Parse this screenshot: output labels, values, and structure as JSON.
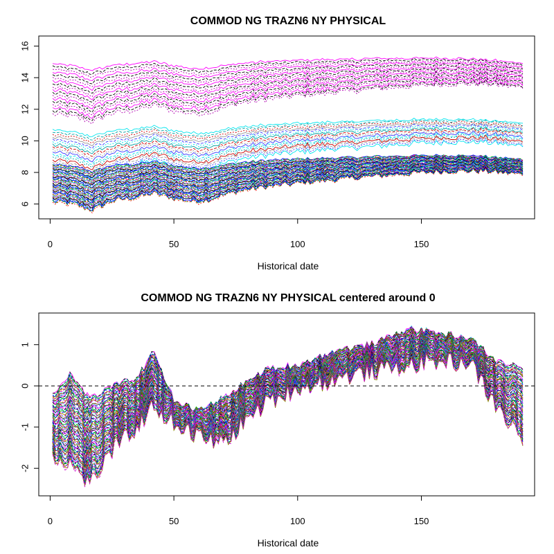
{
  "chart_data": [
    {
      "type": "line",
      "title": "COMMOD NG TRAZN6 NY PHYSICAL",
      "xlabel": "Historical date",
      "ylabel": "",
      "xlim": [
        1,
        191
      ],
      "ylim": [
        5.5,
        16.2
      ],
      "x_ticks": [
        0,
        50,
        100,
        150
      ],
      "y_ticks": [
        6,
        8,
        10,
        12,
        14,
        16
      ],
      "grid": false,
      "legend": "none",
      "n_points": 191,
      "bands": [
        {
          "group": "high",
          "colors": [
            "#ff00ff",
            "#000000",
            "#b000b0"
          ],
          "count": 18,
          "top_start": 14.9,
          "top_end": 14.6,
          "bottom_start": 11.7,
          "bottom_end": 12.9
        },
        {
          "group": "upper-mid",
          "colors": [
            "#00e5ee",
            "#00a0a0",
            "#cc0000",
            "#999999",
            "#3b3bff"
          ],
          "count": 16,
          "top_start": 10.7,
          "top_end": 10.8,
          "bottom_start": 8.3,
          "bottom_end": 9.2
        },
        {
          "group": "low",
          "colors": [
            "#0000ff",
            "#00aa00",
            "#ff0000",
            "#00cccc",
            "#cc00cc",
            "#888800",
            "#000000",
            "#2020a0",
            "#0088ff"
          ],
          "count": 48,
          "top_start": 8.5,
          "top_end": 8.5,
          "bottom_start": 6.1,
          "bottom_end": 7.4
        }
      ],
      "key_points": {
        "x": [
          1,
          10,
          17,
          25,
          35,
          42,
          50,
          58,
          65,
          75,
          85,
          100,
          120,
          140,
          160,
          175,
          191
        ],
        "offset": [
          0.0,
          -0.2,
          -0.55,
          -0.1,
          0.05,
          0.25,
          -0.1,
          -0.35,
          -0.25,
          0.15,
          0.35,
          0.55,
          0.75,
          0.95,
          1.1,
          1.05,
          0.65
        ]
      }
    },
    {
      "type": "line",
      "title": "COMMOD NG TRAZN6 NY PHYSICAL centered around 0",
      "xlabel": "Historical date",
      "ylabel": "",
      "xlim": [
        1,
        191
      ],
      "ylim": [
        -2.5,
        1.6
      ],
      "x_ticks": [
        0,
        50,
        100,
        150
      ],
      "y_ticks": [
        -2,
        -1,
        0,
        1
      ],
      "grid": false,
      "legend": "none",
      "reference_line": {
        "y": 0,
        "style": "dashed"
      },
      "n_series": 80,
      "key_points": {
        "x": [
          1,
          8,
          16,
          25,
          35,
          42,
          50,
          60,
          70,
          78,
          88,
          100,
          115,
          130,
          145,
          160,
          170,
          180,
          191
        ],
        "top": [
          -0.2,
          0.3,
          -0.3,
          0.0,
          0.2,
          0.85,
          -0.35,
          -0.6,
          -0.3,
          0.05,
          0.4,
          0.5,
          0.85,
          1.0,
          1.4,
          1.25,
          1.15,
          0.6,
          0.45
        ],
        "bottom": [
          -1.7,
          -1.9,
          -2.4,
          -1.6,
          -1.0,
          -0.5,
          -0.9,
          -1.25,
          -1.4,
          -0.9,
          -0.4,
          -0.05,
          0.15,
          0.35,
          0.5,
          0.6,
          0.55,
          -0.5,
          -1.3
        ]
      },
      "colors": [
        "#ff00ff",
        "#000000",
        "#00e5ee",
        "#00aa00",
        "#0000ff",
        "#ff0000",
        "#888800",
        "#cc00cc",
        "#00cccc",
        "#804000",
        "#2020a0",
        "#0088ff"
      ]
    }
  ]
}
